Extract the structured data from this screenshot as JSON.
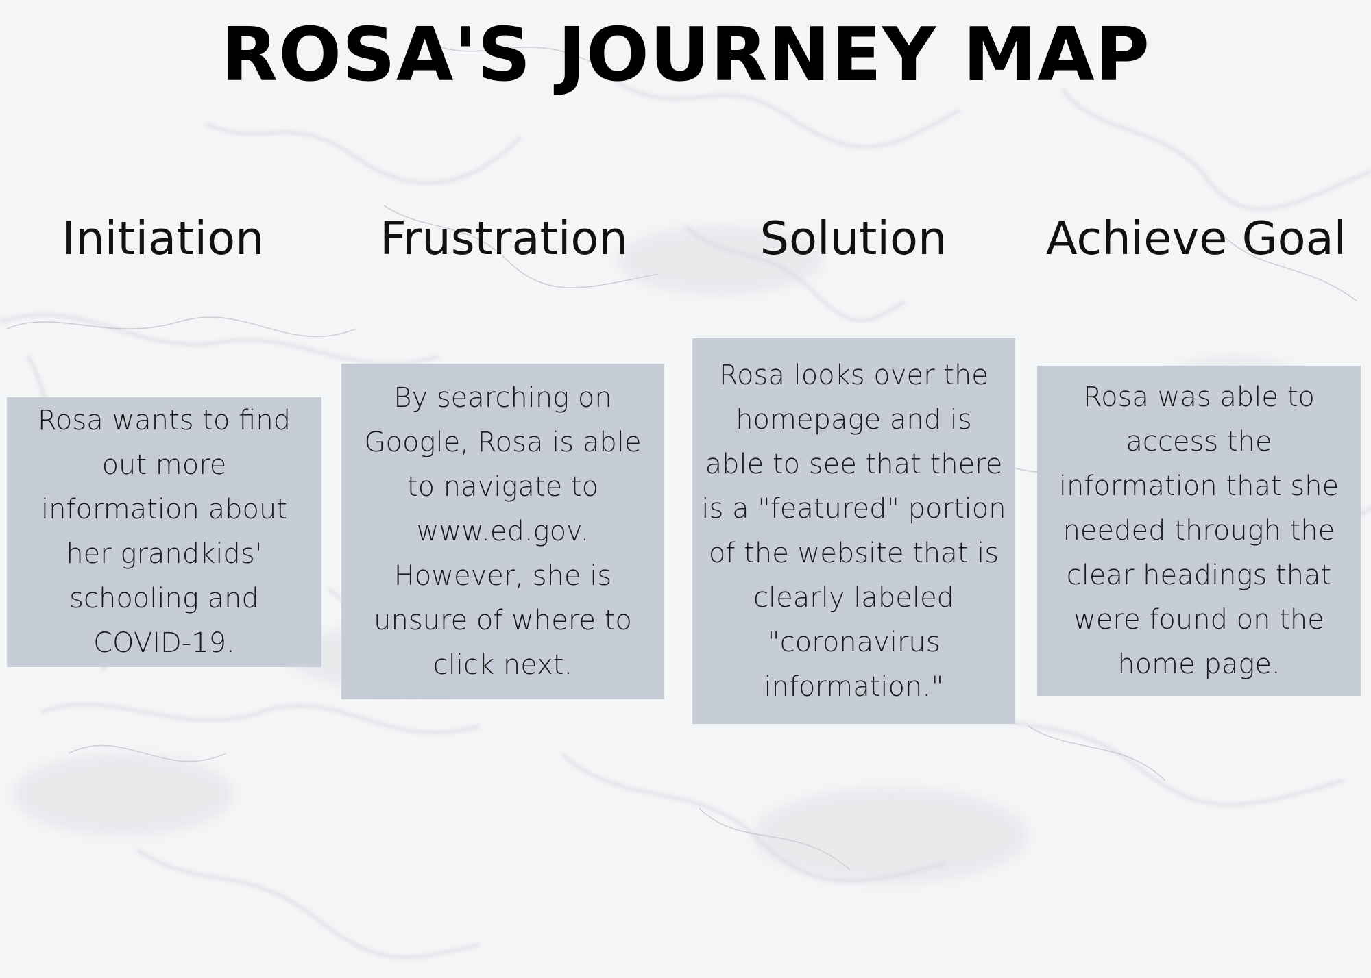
{
  "title": "ROSA'S JOURNEY MAP",
  "stages": [
    {
      "name": "Initiation",
      "description": "Rosa wants to find\nout more\ninformation about\nher grandkids'\nschooling and\nCOVID-19."
    },
    {
      "name": "Frustration",
      "description": "By searching on\nGoogle, Rosa is able\nto navigate to\nwww.ed.gov.\nHowever, she is\nunsure of where to\nclick next."
    },
    {
      "name": "Solution",
      "description": "Rosa looks over the\nhomepage and is\nable to see that there\nis a \"featured\" portion\nof the website that is\nclearly labeled\n\"coronavirus\ninformation.\""
    },
    {
      "name": "Achieve Goal",
      "description": "Rosa was able to\naccess the\ninformation that she\nneeded through the\nclear headings that\nwere found on the\nhome page."
    }
  ],
  "colors": {
    "box_fill": "#c6cdd6",
    "background": "#f3f4f6",
    "text": "#111111"
  }
}
